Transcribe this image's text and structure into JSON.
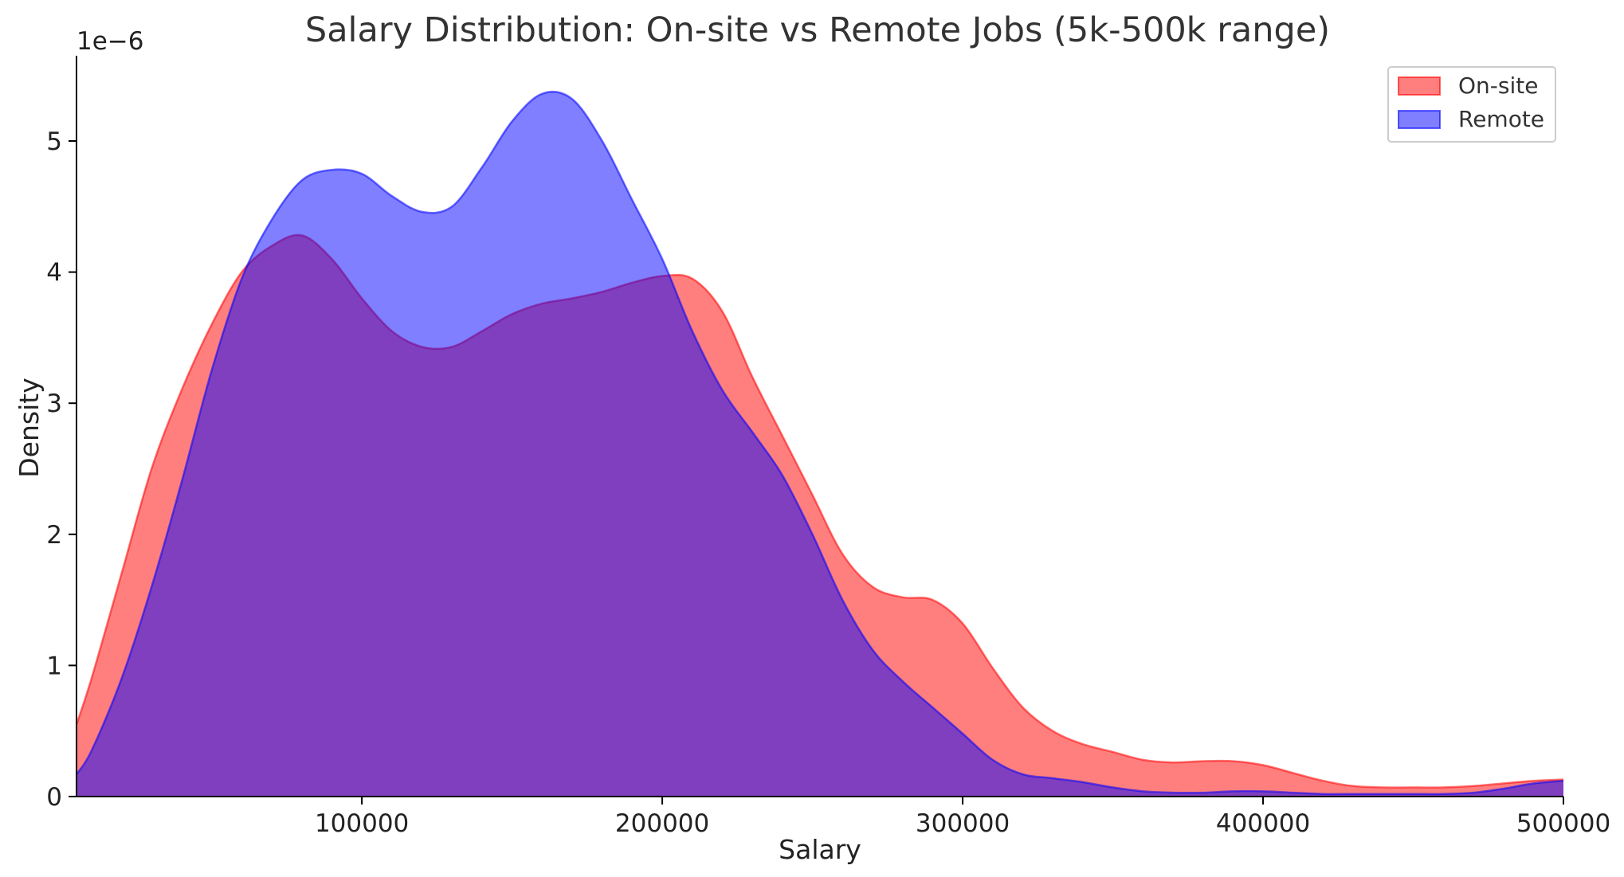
{
  "chart_data": {
    "type": "area",
    "title": "Salary Distribution: On-site vs Remote Jobs (5k-500k range)",
    "xlabel": "Salary",
    "ylabel": "Density",
    "y_scale_label": "1e−6",
    "xlim": [
      5000,
      500000
    ],
    "ylim": [
      0,
      5.65
    ],
    "x_ticks": [
      100000,
      200000,
      300000,
      400000,
      500000
    ],
    "x_tick_labels": [
      "100000",
      "200000",
      "300000",
      "400000",
      "500000"
    ],
    "y_ticks": [
      0,
      1,
      2,
      3,
      4,
      5
    ],
    "y_tick_labels": [
      "0",
      "1",
      "2",
      "3",
      "4",
      "5"
    ],
    "grid": false,
    "legend_position": "top-right",
    "series": [
      {
        "name": "On-site",
        "color": "#ff0000",
        "fill_opacity": 0.5,
        "x": [
          5000,
          10000,
          20000,
          30000,
          40000,
          50000,
          60000,
          70000,
          80000,
          90000,
          100000,
          110000,
          120000,
          130000,
          140000,
          150000,
          160000,
          170000,
          180000,
          190000,
          200000,
          210000,
          220000,
          230000,
          240000,
          250000,
          260000,
          270000,
          280000,
          290000,
          300000,
          310000,
          320000,
          330000,
          340000,
          350000,
          360000,
          370000,
          380000,
          390000,
          400000,
          410000,
          420000,
          430000,
          440000,
          450000,
          460000,
          470000,
          480000,
          490000,
          500000
        ],
        "values": [
          0.55,
          0.9,
          1.7,
          2.5,
          3.1,
          3.6,
          4.0,
          4.2,
          4.28,
          4.1,
          3.8,
          3.55,
          3.43,
          3.43,
          3.55,
          3.68,
          3.76,
          3.8,
          3.85,
          3.92,
          3.97,
          3.95,
          3.7,
          3.2,
          2.75,
          2.3,
          1.85,
          1.6,
          1.52,
          1.5,
          1.32,
          0.98,
          0.68,
          0.5,
          0.4,
          0.34,
          0.28,
          0.26,
          0.27,
          0.27,
          0.24,
          0.18,
          0.12,
          0.08,
          0.07,
          0.07,
          0.07,
          0.08,
          0.1,
          0.12,
          0.13
        ]
      },
      {
        "name": "Remote",
        "color": "#0000ff",
        "fill_opacity": 0.5,
        "x": [
          5000,
          10000,
          20000,
          30000,
          40000,
          50000,
          60000,
          70000,
          80000,
          90000,
          100000,
          110000,
          120000,
          130000,
          140000,
          150000,
          160000,
          170000,
          180000,
          190000,
          200000,
          210000,
          220000,
          230000,
          240000,
          250000,
          260000,
          270000,
          280000,
          290000,
          300000,
          310000,
          320000,
          330000,
          340000,
          350000,
          360000,
          370000,
          380000,
          390000,
          400000,
          410000,
          420000,
          430000,
          440000,
          450000,
          460000,
          470000,
          480000,
          490000,
          500000
        ],
        "values": [
          0.17,
          0.35,
          0.9,
          1.6,
          2.4,
          3.25,
          3.95,
          4.4,
          4.7,
          4.78,
          4.75,
          4.58,
          4.46,
          4.5,
          4.8,
          5.15,
          5.36,
          5.32,
          5.0,
          4.55,
          4.1,
          3.55,
          3.1,
          2.78,
          2.45,
          2.0,
          1.5,
          1.12,
          0.88,
          0.68,
          0.48,
          0.28,
          0.17,
          0.14,
          0.11,
          0.07,
          0.04,
          0.03,
          0.03,
          0.04,
          0.04,
          0.03,
          0.02,
          0.02,
          0.02,
          0.02,
          0.02,
          0.03,
          0.06,
          0.1,
          0.12
        ]
      }
    ]
  }
}
